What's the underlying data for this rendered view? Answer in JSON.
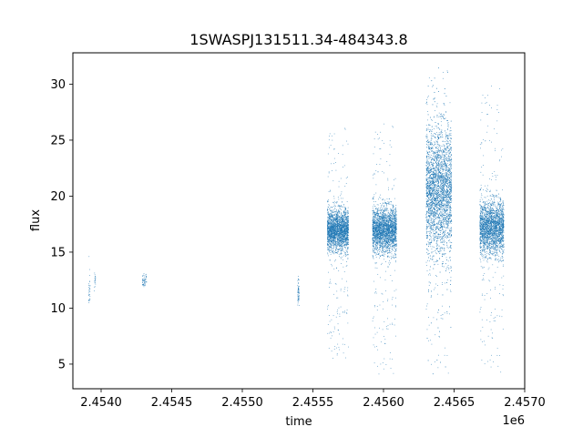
{
  "chart_data": {
    "type": "scatter",
    "title": "1SWASPJ131511.34-484343.8",
    "xlabel": "time",
    "ylabel": "flux",
    "x_offset_label": "1e6",
    "xlim": [
      2.4538,
      2.457
    ],
    "ylim": [
      2.8,
      32.8
    ],
    "x_ticks": [
      2.454,
      2.4545,
      2.455,
      2.4555,
      2.456,
      2.4565,
      2.457
    ],
    "x_tick_labels": [
      "2.4540",
      "2.4545",
      "2.4550",
      "2.4555",
      "2.4560",
      "2.4565",
      "2.4570"
    ],
    "y_ticks": [
      5,
      10,
      15,
      20,
      25,
      30
    ],
    "y_tick_labels": [
      "5",
      "10",
      "15",
      "20",
      "25",
      "30"
    ],
    "grid": false,
    "marker_color": "#1f77b4",
    "point_clusters": [
      {
        "x_start": 2.45391,
        "x_end": 2.45392,
        "y_center": 11.5,
        "y_spread": 0.9,
        "y_min": 10.5,
        "y_max": 14.7,
        "count": 30
      },
      {
        "x_start": 2.45395,
        "x_end": 2.45396,
        "y_center": 12.4,
        "y_spread": 0.5,
        "y_min": 11.5,
        "y_max": 13.3,
        "count": 20
      },
      {
        "x_start": 2.45429,
        "x_end": 2.45432,
        "y_center": 12.5,
        "y_spread": 0.3,
        "y_min": 11.9,
        "y_max": 13.2,
        "count": 50
      },
      {
        "x_start": 2.45539,
        "x_end": 2.4554,
        "y_center": 11.5,
        "y_spread": 0.6,
        "y_min": 9.9,
        "y_max": 12.9,
        "count": 60
      },
      {
        "x_start": 2.4556,
        "x_end": 2.45575,
        "y_center": 17.0,
        "y_spread": 0.9,
        "y_min": 5.5,
        "y_max": 26.3,
        "count": 2500
      },
      {
        "x_start": 2.45592,
        "x_end": 2.45609,
        "y_center": 17.0,
        "y_spread": 1.0,
        "y_min": 4.1,
        "y_max": 26.5,
        "count": 2600
      },
      {
        "x_start": 2.4563,
        "x_end": 2.45648,
        "y_center": 20.5,
        "y_spread": 2.8,
        "y_min": 4.1,
        "y_max": 31.5,
        "count": 3800
      },
      {
        "x_start": 2.45668,
        "x_end": 2.45685,
        "y_center": 17.2,
        "y_spread": 1.2,
        "y_min": 4.2,
        "y_max": 29.9,
        "count": 2500
      }
    ]
  }
}
